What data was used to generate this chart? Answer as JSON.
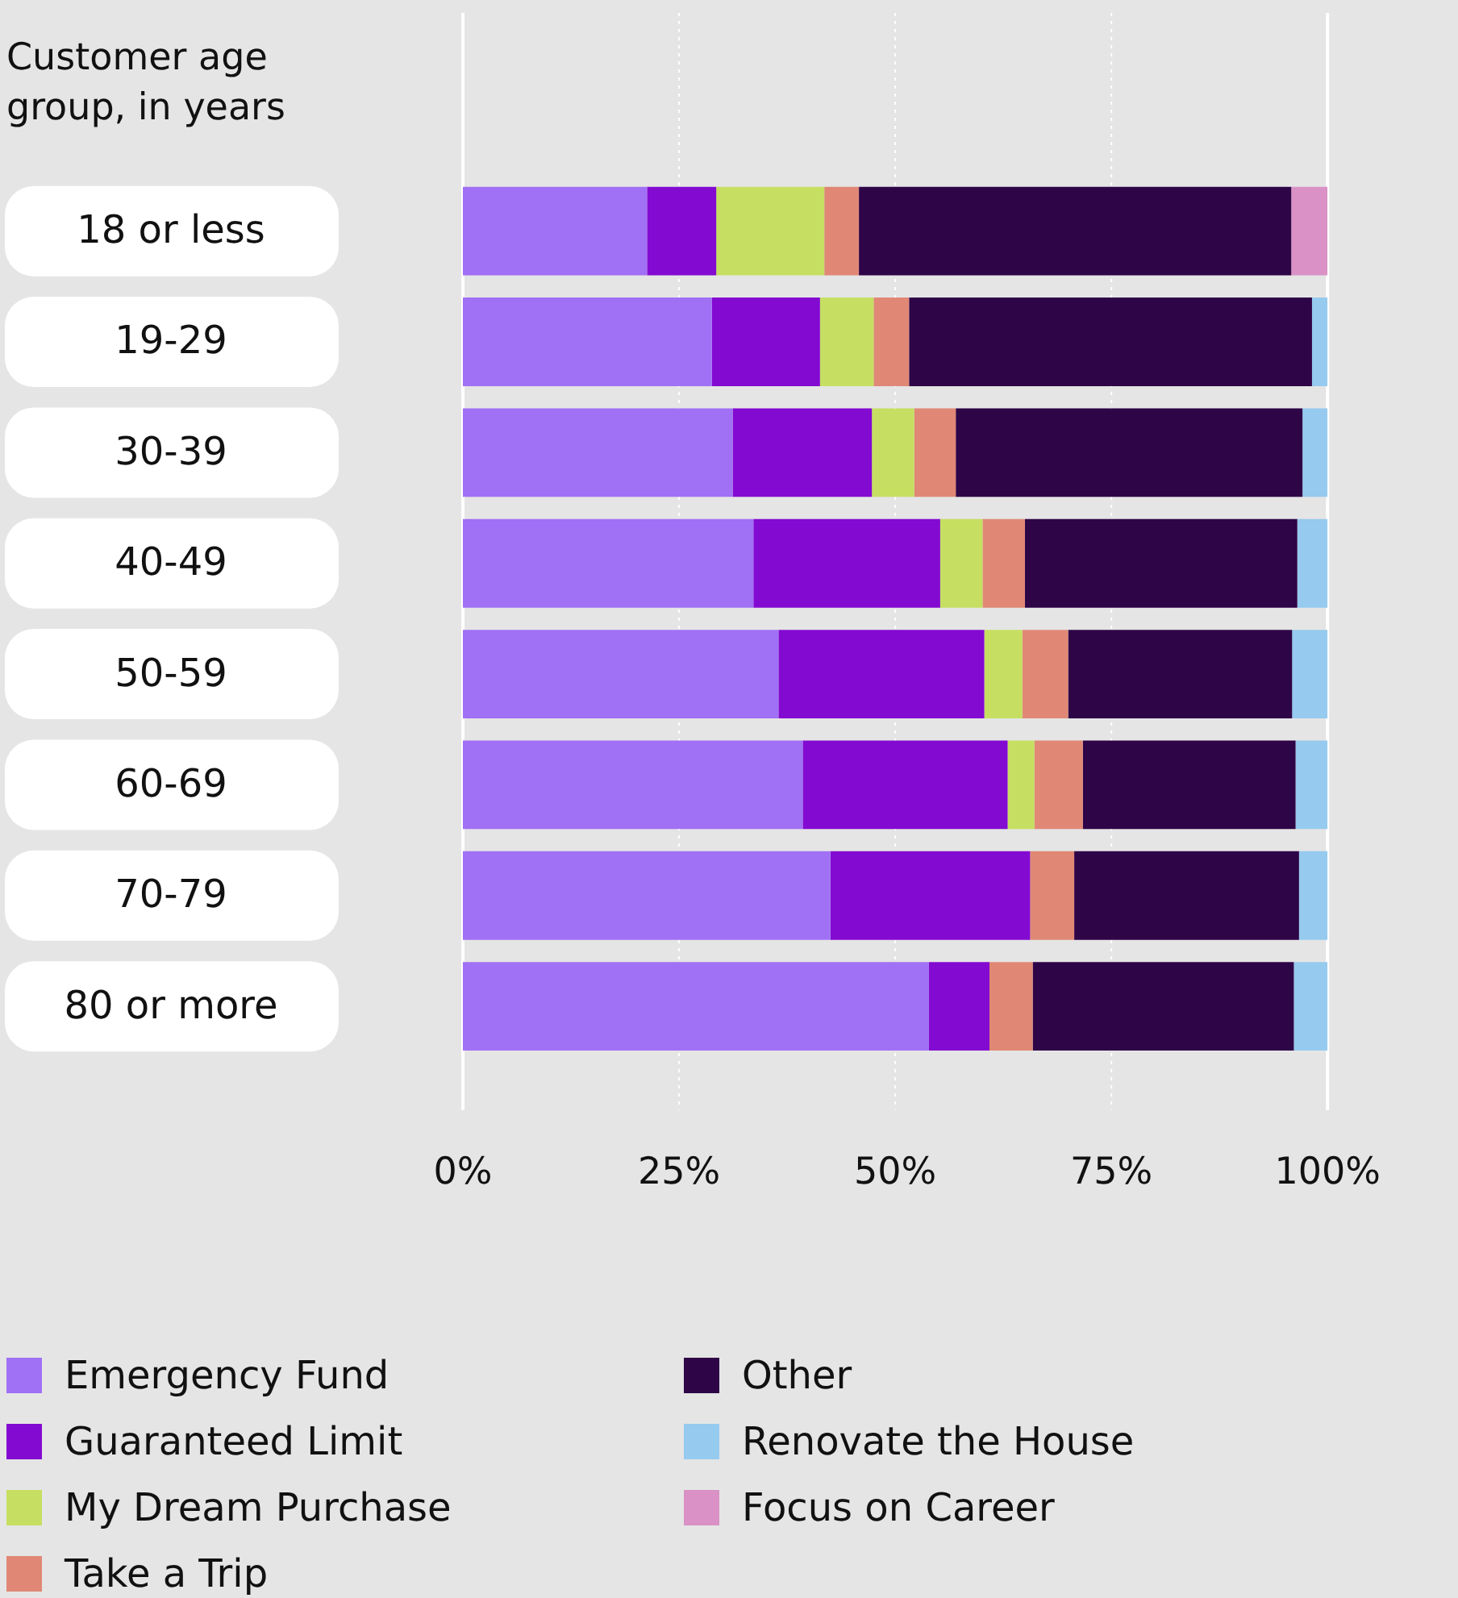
{
  "chart_data": {
    "type": "bar",
    "orientation": "horizontal",
    "stacked": true,
    "ylabel": "Customer age group, in years",
    "categories": [
      "18 or less",
      "19-29",
      "30-39",
      "40-49",
      "50-59",
      "60-69",
      "70-79",
      "80 or more"
    ],
    "series": [
      {
        "name": "Emergency Fund",
        "color": "#a070f5",
        "values": [
          21.3,
          28.8,
          31.2,
          33.6,
          36.5,
          39.3,
          42.5,
          53.9
        ]
      },
      {
        "name": "Guaranteed Limit",
        "color": "#830ad1",
        "values": [
          8.0,
          12.5,
          16.1,
          21.6,
          23.8,
          23.7,
          23.1,
          7.0
        ]
      },
      {
        "name": "My Dream Purchase",
        "color": "#c6df62",
        "values": [
          12.5,
          6.2,
          4.9,
          4.9,
          4.4,
          3.1,
          null,
          null
        ]
      },
      {
        "name": "Take a Trip",
        "color": "#e08875",
        "values": [
          4.0,
          4.1,
          4.8,
          4.9,
          5.3,
          5.6,
          5.1,
          5.0
        ]
      },
      {
        "name": "Other",
        "color": "#2e0547",
        "values": [
          50.0,
          46.6,
          40.1,
          31.5,
          25.9,
          24.6,
          26.0,
          30.2
        ]
      },
      {
        "name": "Renovate the House",
        "color": "#96caef",
        "values": [
          null,
          1.8,
          2.9,
          3.5,
          4.1,
          3.7,
          3.3,
          3.9
        ]
      },
      {
        "name": "Focus on Career",
        "color": "#da91c5",
        "values": [
          4.2,
          null,
          null,
          null,
          null,
          null,
          null,
          null
        ]
      }
    ],
    "xlim": [
      0,
      100
    ],
    "xticks": [
      {
        "value": 0,
        "label": "0%"
      },
      {
        "value": 25,
        "label": "25%"
      },
      {
        "value": 50,
        "label": "50%"
      },
      {
        "value": 75,
        "label": "75%"
      },
      {
        "value": 100,
        "label": "100%"
      }
    ],
    "grid": "x",
    "legend": "bottom"
  }
}
